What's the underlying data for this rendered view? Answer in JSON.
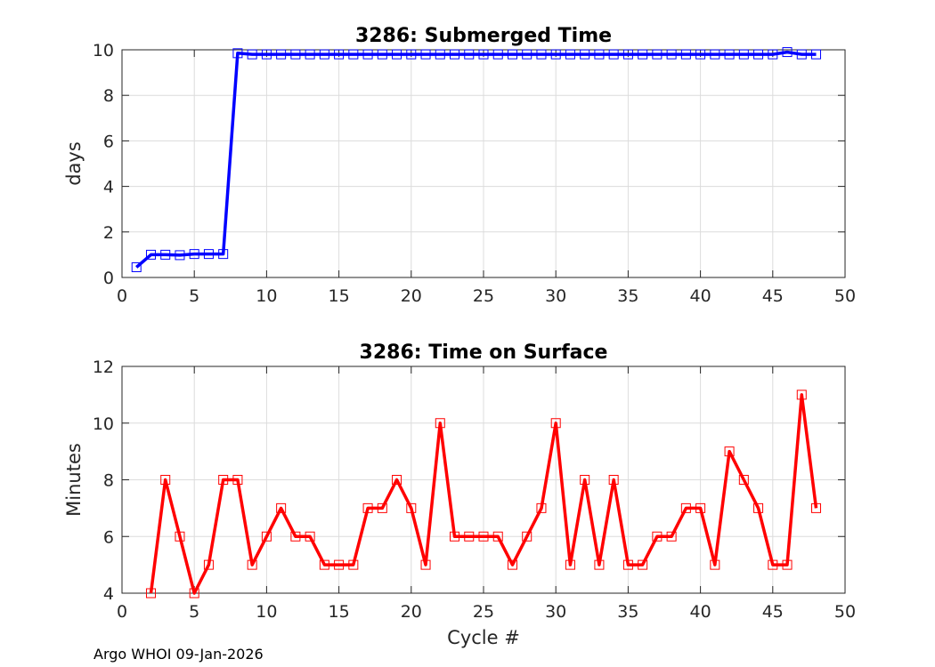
{
  "chart_data": [
    {
      "type": "line",
      "title": "3286: Submerged Time",
      "xlabel": "",
      "ylabel": "days",
      "xlim": [
        0,
        50
      ],
      "ylim": [
        0,
        10
      ],
      "xticks": [
        0,
        5,
        10,
        15,
        20,
        25,
        30,
        35,
        40,
        45,
        50
      ],
      "yticks": [
        0,
        2,
        4,
        6,
        8,
        10
      ],
      "grid": true,
      "color": "#0000ff",
      "marker": "square",
      "series": [
        {
          "name": "Submerged Time",
          "x": [
            1,
            2,
            3,
            4,
            5,
            6,
            7,
            8,
            9,
            10,
            11,
            12,
            13,
            14,
            15,
            16,
            17,
            18,
            19,
            20,
            21,
            22,
            23,
            24,
            25,
            26,
            27,
            28,
            29,
            30,
            31,
            32,
            33,
            34,
            35,
            36,
            37,
            38,
            39,
            40,
            41,
            42,
            43,
            44,
            45,
            46,
            47,
            48
          ],
          "values": [
            0.45,
            1.0,
            1.0,
            0.98,
            1.03,
            1.03,
            1.03,
            9.85,
            9.8,
            9.8,
            9.8,
            9.8,
            9.8,
            9.8,
            9.8,
            9.8,
            9.8,
            9.8,
            9.8,
            9.8,
            9.8,
            9.8,
            9.8,
            9.8,
            9.8,
            9.8,
            9.8,
            9.8,
            9.8,
            9.8,
            9.8,
            9.8,
            9.8,
            9.8,
            9.8,
            9.8,
            9.8,
            9.8,
            9.8,
            9.8,
            9.8,
            9.8,
            9.8,
            9.8,
            9.8,
            9.9,
            9.8,
            9.8
          ]
        }
      ]
    },
    {
      "type": "line",
      "title": "3286: Time on Surface",
      "xlabel": "Cycle #",
      "ylabel": "Minutes",
      "xlim": [
        0,
        50
      ],
      "ylim": [
        4,
        12
      ],
      "xticks": [
        0,
        5,
        10,
        15,
        20,
        25,
        30,
        35,
        40,
        45,
        50
      ],
      "yticks": [
        4,
        6,
        8,
        10,
        12
      ],
      "grid": true,
      "color": "#ff0000",
      "marker": "square",
      "series": [
        {
          "name": "Time on Surface",
          "x": [
            2,
            3,
            4,
            5,
            6,
            7,
            8,
            9,
            10,
            11,
            12,
            13,
            14,
            15,
            16,
            17,
            18,
            19,
            20,
            21,
            22,
            23,
            24,
            25,
            26,
            27,
            28,
            29,
            30,
            31,
            32,
            33,
            34,
            35,
            36,
            37,
            38,
            39,
            40,
            41,
            42,
            43,
            44,
            45,
            46,
            47,
            48
          ],
          "values": [
            4,
            8,
            6,
            4,
            5,
            8,
            8,
            5,
            6,
            7,
            6,
            6,
            5,
            5,
            5,
            7,
            7,
            8,
            7,
            5,
            10,
            6,
            6,
            6,
            6,
            5,
            6,
            7,
            10,
            5,
            8,
            5,
            8,
            5,
            5,
            6,
            6,
            7,
            7,
            5,
            9,
            8,
            7,
            5,
            5,
            11,
            7
          ]
        }
      ]
    }
  ],
  "footer": "Argo WHOI 09-Jan-2026"
}
